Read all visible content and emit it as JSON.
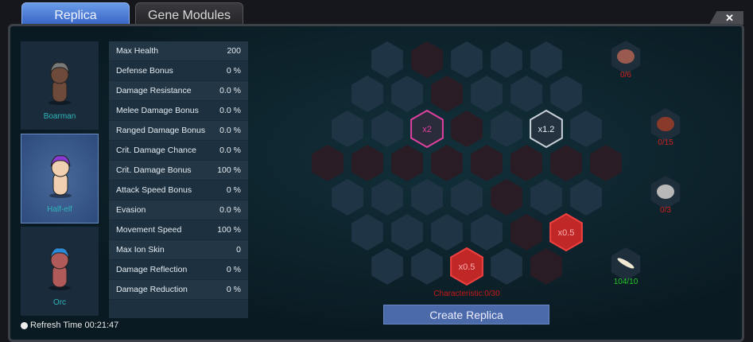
{
  "tabs": [
    {
      "label": "Replica",
      "active": true
    },
    {
      "label": "Gene Modules",
      "active": false
    }
  ],
  "close_label": "✕",
  "races": [
    {
      "name": "Boarman",
      "selected": false,
      "hair": "#7a7a7a",
      "skin": "#6e4a3a"
    },
    {
      "name": "Half-elf",
      "selected": true,
      "hair": "#8a3ad0",
      "skin": "#f0d0b0"
    },
    {
      "name": "Orc",
      "selected": false,
      "hair": "#2a8ad8",
      "skin": "#b05a5a"
    }
  ],
  "stats": [
    {
      "label": "Max Health",
      "value": "200"
    },
    {
      "label": "Defense Bonus",
      "value": "0 %"
    },
    {
      "label": "Damage Resistance",
      "value": "0.0 %"
    },
    {
      "label": "Melee Damage Bonus",
      "value": "0.0 %"
    },
    {
      "label": "Ranged Damage Bonus",
      "value": "0.0 %"
    },
    {
      "label": "Crit. Damage Chance",
      "value": "0.0 %"
    },
    {
      "label": "Crit. Damage Bonus",
      "value": "100 %"
    },
    {
      "label": "Attack Speed Bonus",
      "value": "0 %"
    },
    {
      "label": "Evasion",
      "value": "0.0 %"
    },
    {
      "label": "Movement Speed",
      "value": "100 %"
    },
    {
      "label": "Max Ion Skin",
      "value": "0"
    },
    {
      "label": "Damage Reflection",
      "value": "0 %"
    },
    {
      "label": "Damage Reduction",
      "value": "0 %"
    }
  ],
  "refresh": "Refresh Time 00:21:47",
  "hex_rows": [
    [
      "n",
      "r",
      "n",
      "n",
      "n"
    ],
    [
      "n",
      "n",
      "r",
      "n",
      "n",
      "n"
    ],
    [
      "n",
      "n",
      "x2",
      "r",
      "n",
      "x1.2",
      "n"
    ],
    [
      "r",
      "r",
      "r",
      "r",
      "r",
      "r",
      "r",
      "r"
    ],
    [
      "n",
      "n",
      "n",
      "n",
      "r",
      "n",
      "n"
    ],
    [
      "n",
      "n",
      "n",
      "n",
      "r",
      "x0.5"
    ],
    [
      "n",
      "n",
      "x0.5",
      "n",
      "r"
    ]
  ],
  "colors": {
    "pink": "#e040a0",
    "white": "#c8d0d8",
    "red_active": "#c02828"
  },
  "materials": [
    {
      "icon": "meat-icon",
      "count": "0/6",
      "ok": false
    },
    {
      "icon": "leaf-icon",
      "count": "0/15",
      "ok": false
    },
    {
      "icon": "fur-icon",
      "count": "0/3",
      "ok": false
    },
    {
      "icon": "bone-icon",
      "count": "104/10",
      "ok": true
    }
  ],
  "characteristic": "Characteristic:0/30",
  "create_label": "Create Replica"
}
